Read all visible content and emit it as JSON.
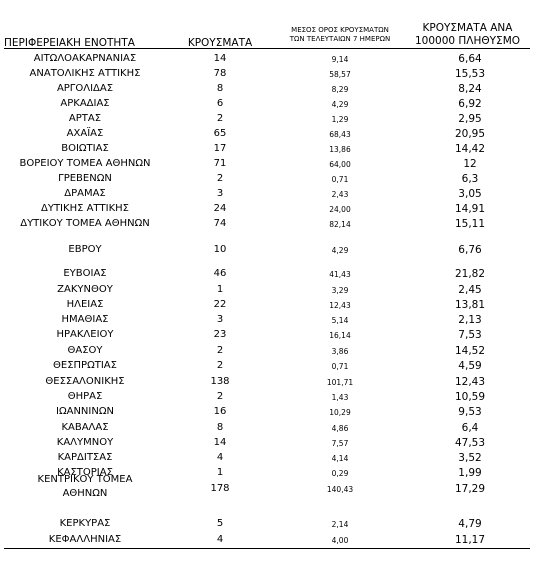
{
  "headers": {
    "region": "ΠΕΡΙΦΕΡΕΙΑΚΗ ΕΝΟΤΗΤΑ",
    "cases": "ΚΡΟΥΣΜΑΤΑ",
    "avg_line1": "ΜΕΣΟΣ ΟΡΟΣ ΚΡΟΥΣΜΑΤΩΝ",
    "avg_line2": "ΤΩΝ ΤΕΛΕΥΤΑΙΩΝ 7 ΗΜΕΡΩΝ",
    "per_line1": "ΚΡΟΥΣΜΑΤΑ ΑΝΑ",
    "per_line2": "100000 ΠΛΗΘΥΣΜΟ"
  },
  "rows": [
    {
      "region": "ΑΙΤΩΛΟΑΚΑΡΝΑΝΙΑΣ",
      "cases": "14",
      "avg": "9,14",
      "per100k": "6,64"
    },
    {
      "region": "ΑΝΑΤΟΛΙΚΗΣ ΑΤΤΙΚΗΣ",
      "cases": "78",
      "avg": "58,57",
      "per100k": "15,53"
    },
    {
      "region": "ΑΡΓΟΛΙΔΑΣ",
      "cases": "8",
      "avg": "8,29",
      "per100k": "8,24"
    },
    {
      "region": "ΑΡΚΑΔΙΑΣ",
      "cases": "6",
      "avg": "4,29",
      "per100k": "6,92"
    },
    {
      "region": "ΑΡΤΑΣ",
      "cases": "2",
      "avg": "1,29",
      "per100k": "2,95"
    },
    {
      "region": "ΑΧΑΪΑΣ",
      "cases": "65",
      "avg": "68,43",
      "per100k": "20,95"
    },
    {
      "region": "ΒΟΙΩΤΙΑΣ",
      "cases": "17",
      "avg": "13,86",
      "per100k": "14,42"
    },
    {
      "region": "ΒΟΡΕΙΟΥ ΤΟΜΕΑ ΑΘΗΝΩΝ",
      "cases": "71",
      "avg": "64,00",
      "per100k": "12"
    },
    {
      "region": "ΓΡΕΒΕΝΩΝ",
      "cases": "2",
      "avg": "0,71",
      "per100k": "6,3"
    },
    {
      "region": "ΔΡΑΜΑΣ",
      "cases": "3",
      "avg": "2,43",
      "per100k": "3,05"
    },
    {
      "region": "ΔΥΤΙΚΗΣ ΑΤΤΙΚΗΣ",
      "cases": "24",
      "avg": "24,00",
      "per100k": "14,91"
    },
    {
      "region": "ΔΥΤΙΚΟΥ ΤΟΜΕΑ ΑΘΗΝΩΝ",
      "cases": "74",
      "avg": "82,14",
      "per100k": "15,11"
    },
    {
      "region": "ΕΒΡΟΥ",
      "cases": "10",
      "avg": "4,29",
      "per100k": "6,76"
    },
    {
      "region": "ΕΥΒΟΙΑΣ",
      "cases": "46",
      "avg": "41,43",
      "per100k": "21,82"
    },
    {
      "region": "ΖΑΚΥΝΘΟΥ",
      "cases": "1",
      "avg": "3,29",
      "per100k": "2,45"
    },
    {
      "region": "ΗΛΕΙΑΣ",
      "cases": "22",
      "avg": "12,43",
      "per100k": "13,81"
    },
    {
      "region": "ΗΜΑΘΙΑΣ",
      "cases": "3",
      "avg": "5,14",
      "per100k": "2,13"
    },
    {
      "region": "ΗΡΑΚΛΕΙΟΥ",
      "cases": "23",
      "avg": "16,14",
      "per100k": "7,53"
    },
    {
      "region": "ΘΑΣΟΥ",
      "cases": "2",
      "avg": "3,86",
      "per100k": "14,52"
    },
    {
      "region": "ΘΕΣΠΡΩΤΙΑΣ",
      "cases": "2",
      "avg": "0,71",
      "per100k": "4,59"
    },
    {
      "region": "ΘΕΣΣΑΛΟΝΙΚΗΣ",
      "cases": "138",
      "avg": "101,71",
      "per100k": "12,43"
    },
    {
      "region": "ΘΗΡΑΣ",
      "cases": "2",
      "avg": "1,43",
      "per100k": "10,59"
    },
    {
      "region": "ΙΩΑΝΝΙΝΩΝ",
      "cases": "16",
      "avg": "10,29",
      "per100k": "9,53"
    },
    {
      "region": "ΚΑΒΑΛΑΣ",
      "cases": "8",
      "avg": "4,86",
      "per100k": "6,4"
    },
    {
      "region": "ΚΑΛΥΜΝΟΥ",
      "cases": "14",
      "avg": "7,57",
      "per100k": "47,53"
    },
    {
      "region": "ΚΑΡΔΙΤΣΑΣ",
      "cases": "4",
      "avg": "4,14",
      "per100k": "3,52"
    },
    {
      "region": "ΚΑΣΤΟΡΙΑΣ",
      "cases": "1",
      "avg": "0,29",
      "per100k": "1,99"
    },
    {
      "region": "ΚΕΝΤΡΙΚΟΥ ΤΟΜΕΑ",
      "region2": "ΑΘΗΝΩΝ",
      "cases": "178",
      "avg": "140,43",
      "per100k": "17,29"
    },
    {
      "region": "ΚΕΡΚΥΡΑΣ",
      "cases": "5",
      "avg": "2,14",
      "per100k": "4,79"
    },
    {
      "region": "ΚΕΦΑΛΛΗΝΙΑΣ",
      "cases": "4",
      "avg": "4,00",
      "per100k": "11,17"
    }
  ]
}
